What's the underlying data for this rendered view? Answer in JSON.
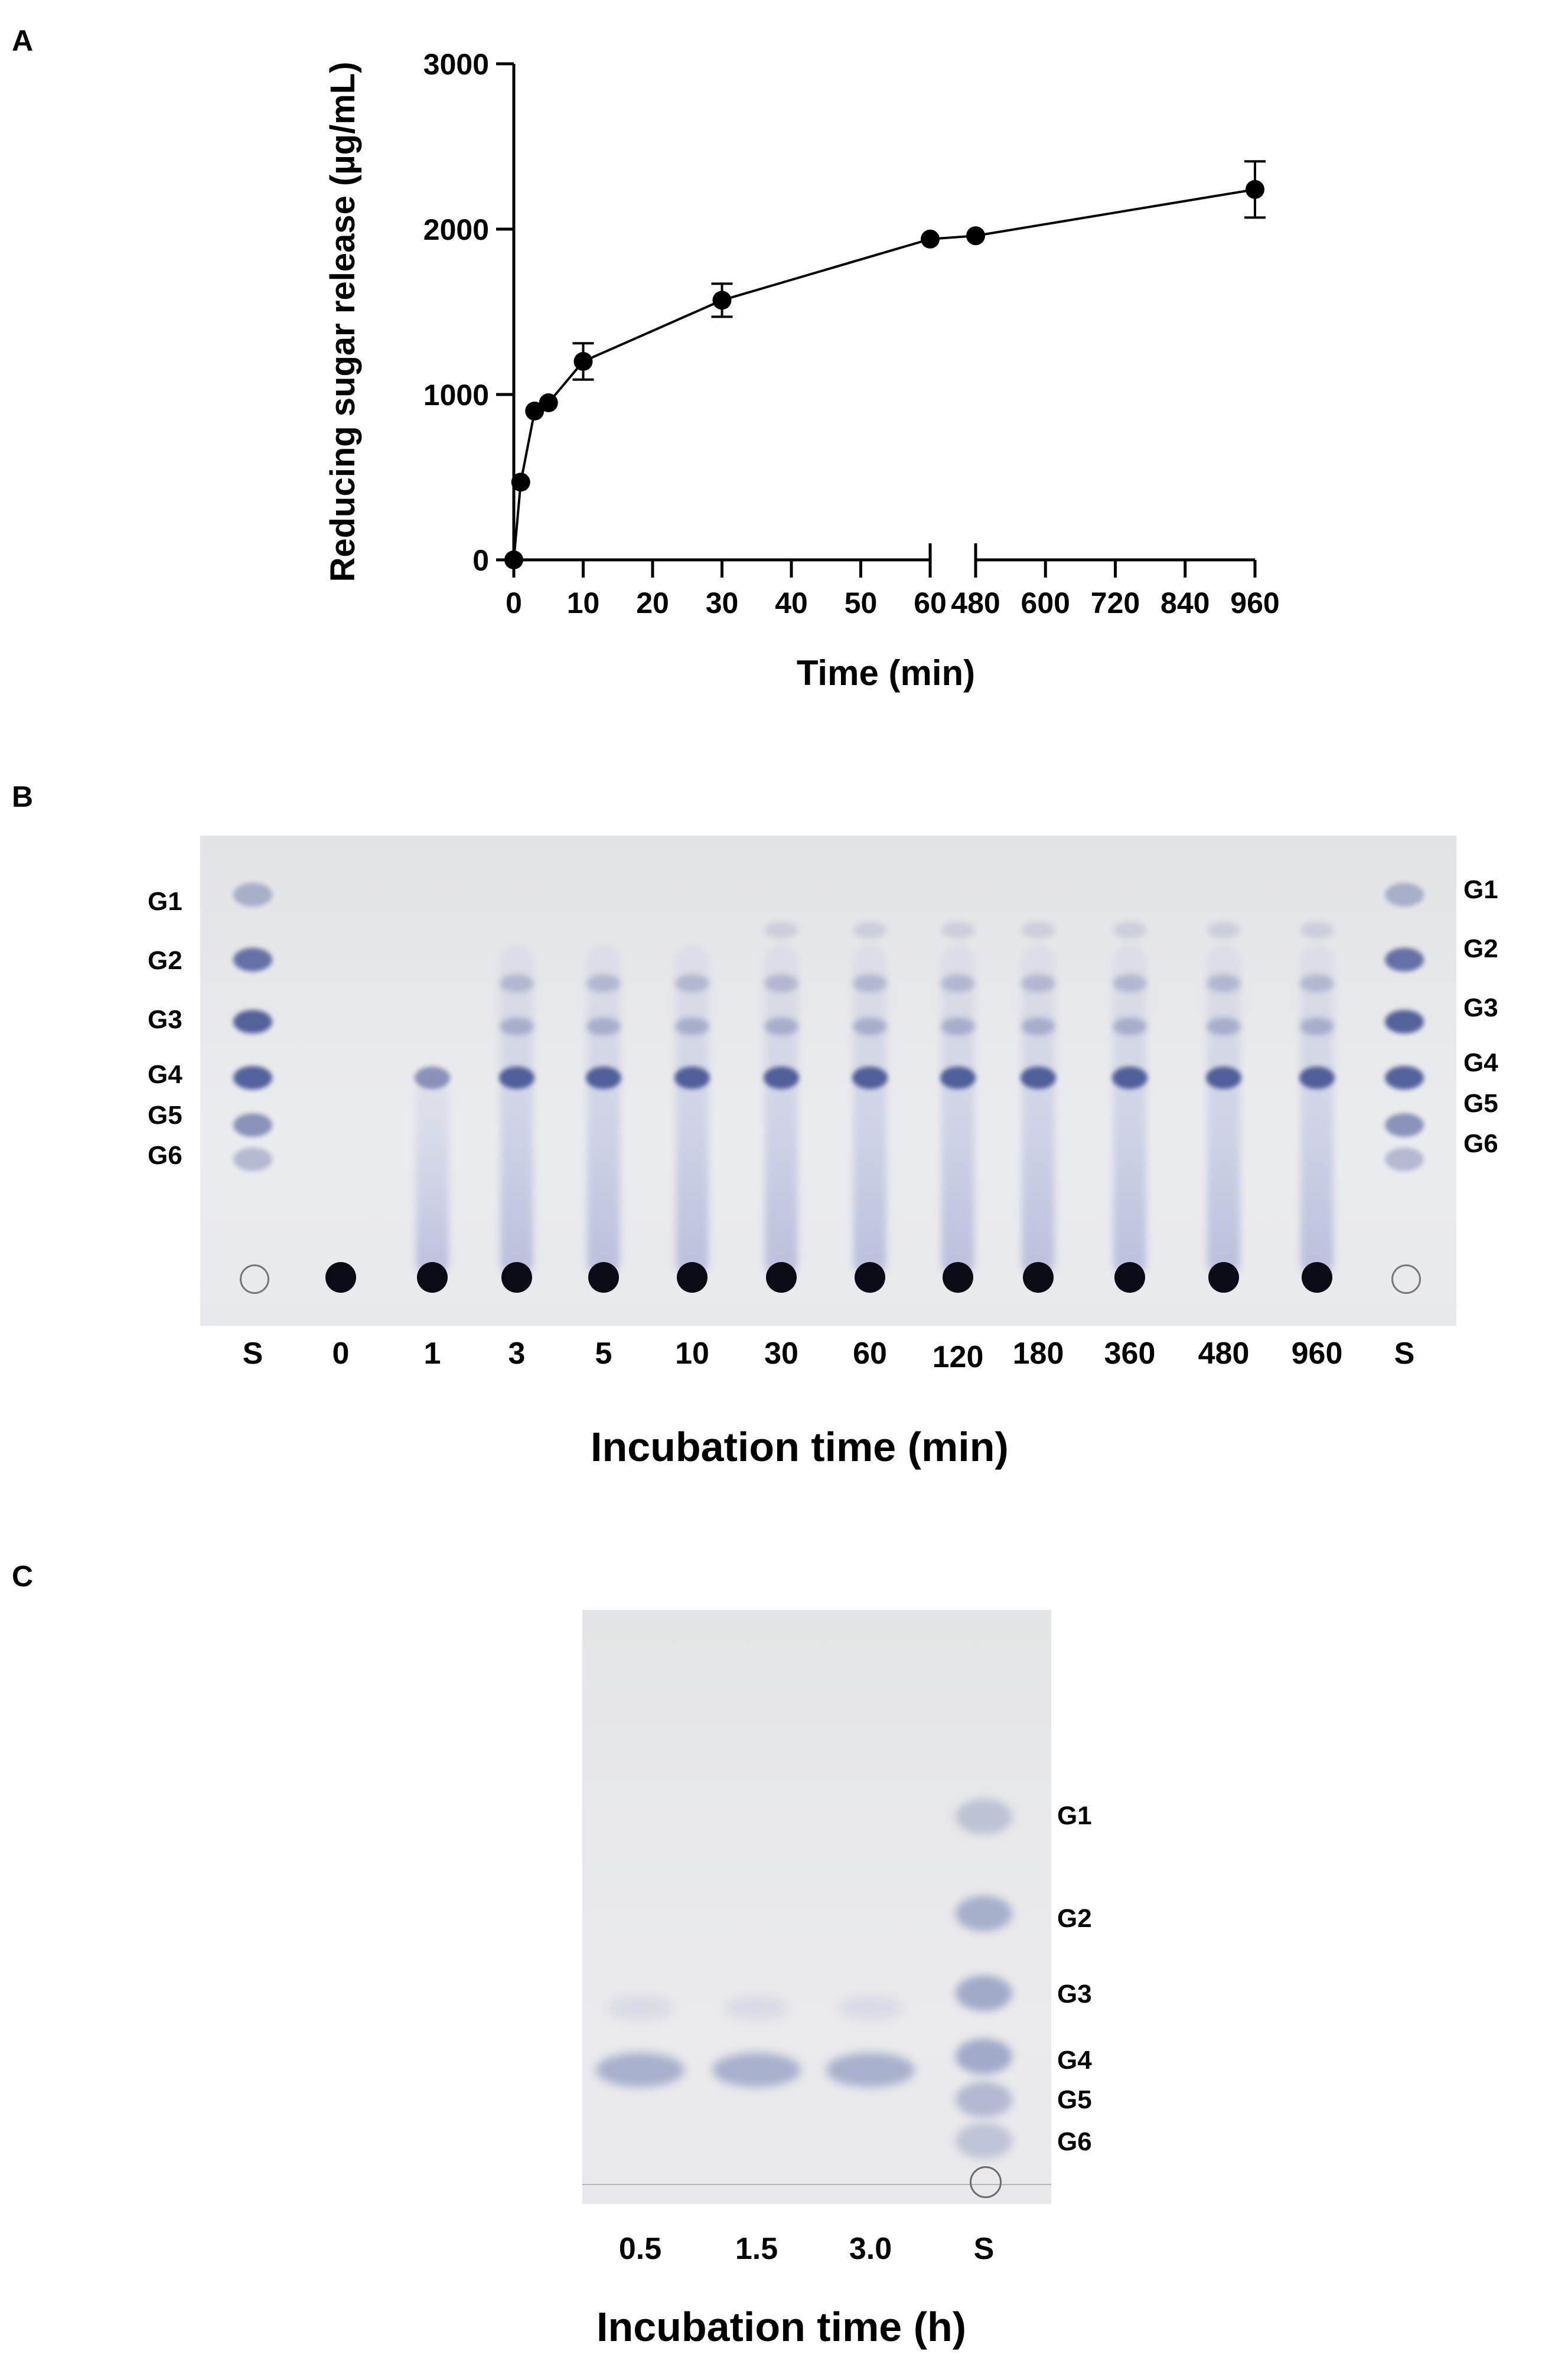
{
  "panel_a": {
    "letter": "A",
    "chart_data": {
      "type": "line",
      "xlabel": "Time (min)",
      "ylabel": "Reducing sugar release (µg/mL)",
      "ylim": [
        0,
        3000
      ],
      "yticks": [
        "0",
        "1000",
        "2000",
        "3000"
      ],
      "x_segments": [
        {
          "range": [
            0,
            60
          ],
          "ticks": [
            "0",
            "10",
            "20",
            "30",
            "40",
            "50",
            "60"
          ]
        },
        {
          "range": [
            480,
            960
          ],
          "ticks": [
            "480",
            "600",
            "720",
            "840",
            "960"
          ]
        }
      ],
      "series": [
        {
          "points": [
            {
              "x": 0,
              "y": 0,
              "err": 0
            },
            {
              "x": 1,
              "y": 470,
              "err": 0
            },
            {
              "x": 3,
              "y": 900,
              "err": 0
            },
            {
              "x": 5,
              "y": 950,
              "err": 0
            },
            {
              "x": 10,
              "y": 1200,
              "err": 110
            },
            {
              "x": 30,
              "y": 1570,
              "err": 100
            },
            {
              "x": 60,
              "y": 1940,
              "err": 0
            },
            {
              "x": 480,
              "y": 1960,
              "err": 0
            },
            {
              "x": 960,
              "y": 2240,
              "err": 170
            }
          ]
        }
      ]
    }
  },
  "panel_b": {
    "letter": "B",
    "band_labels": [
      "G1",
      "G2",
      "G3",
      "G4",
      "G5",
      "G6"
    ],
    "lane_labels": [
      "S",
      "0",
      "1",
      "3",
      "5",
      "10",
      "30",
      "60",
      "120",
      "180",
      "360",
      "480",
      "960",
      "S"
    ],
    "xlabel": "Incubation time (min)",
    "spot_color": "#0b0b14",
    "band_color": "#3a4a8c"
  },
  "panel_c": {
    "letter": "C",
    "band_labels": [
      "G1",
      "G2",
      "G3",
      "G4",
      "G5",
      "G6"
    ],
    "lane_labels": [
      "0.5",
      "1.5",
      "3.0",
      "S"
    ],
    "xlabel": "Incubation time (h)",
    "band_color": "#6f7fb0"
  }
}
